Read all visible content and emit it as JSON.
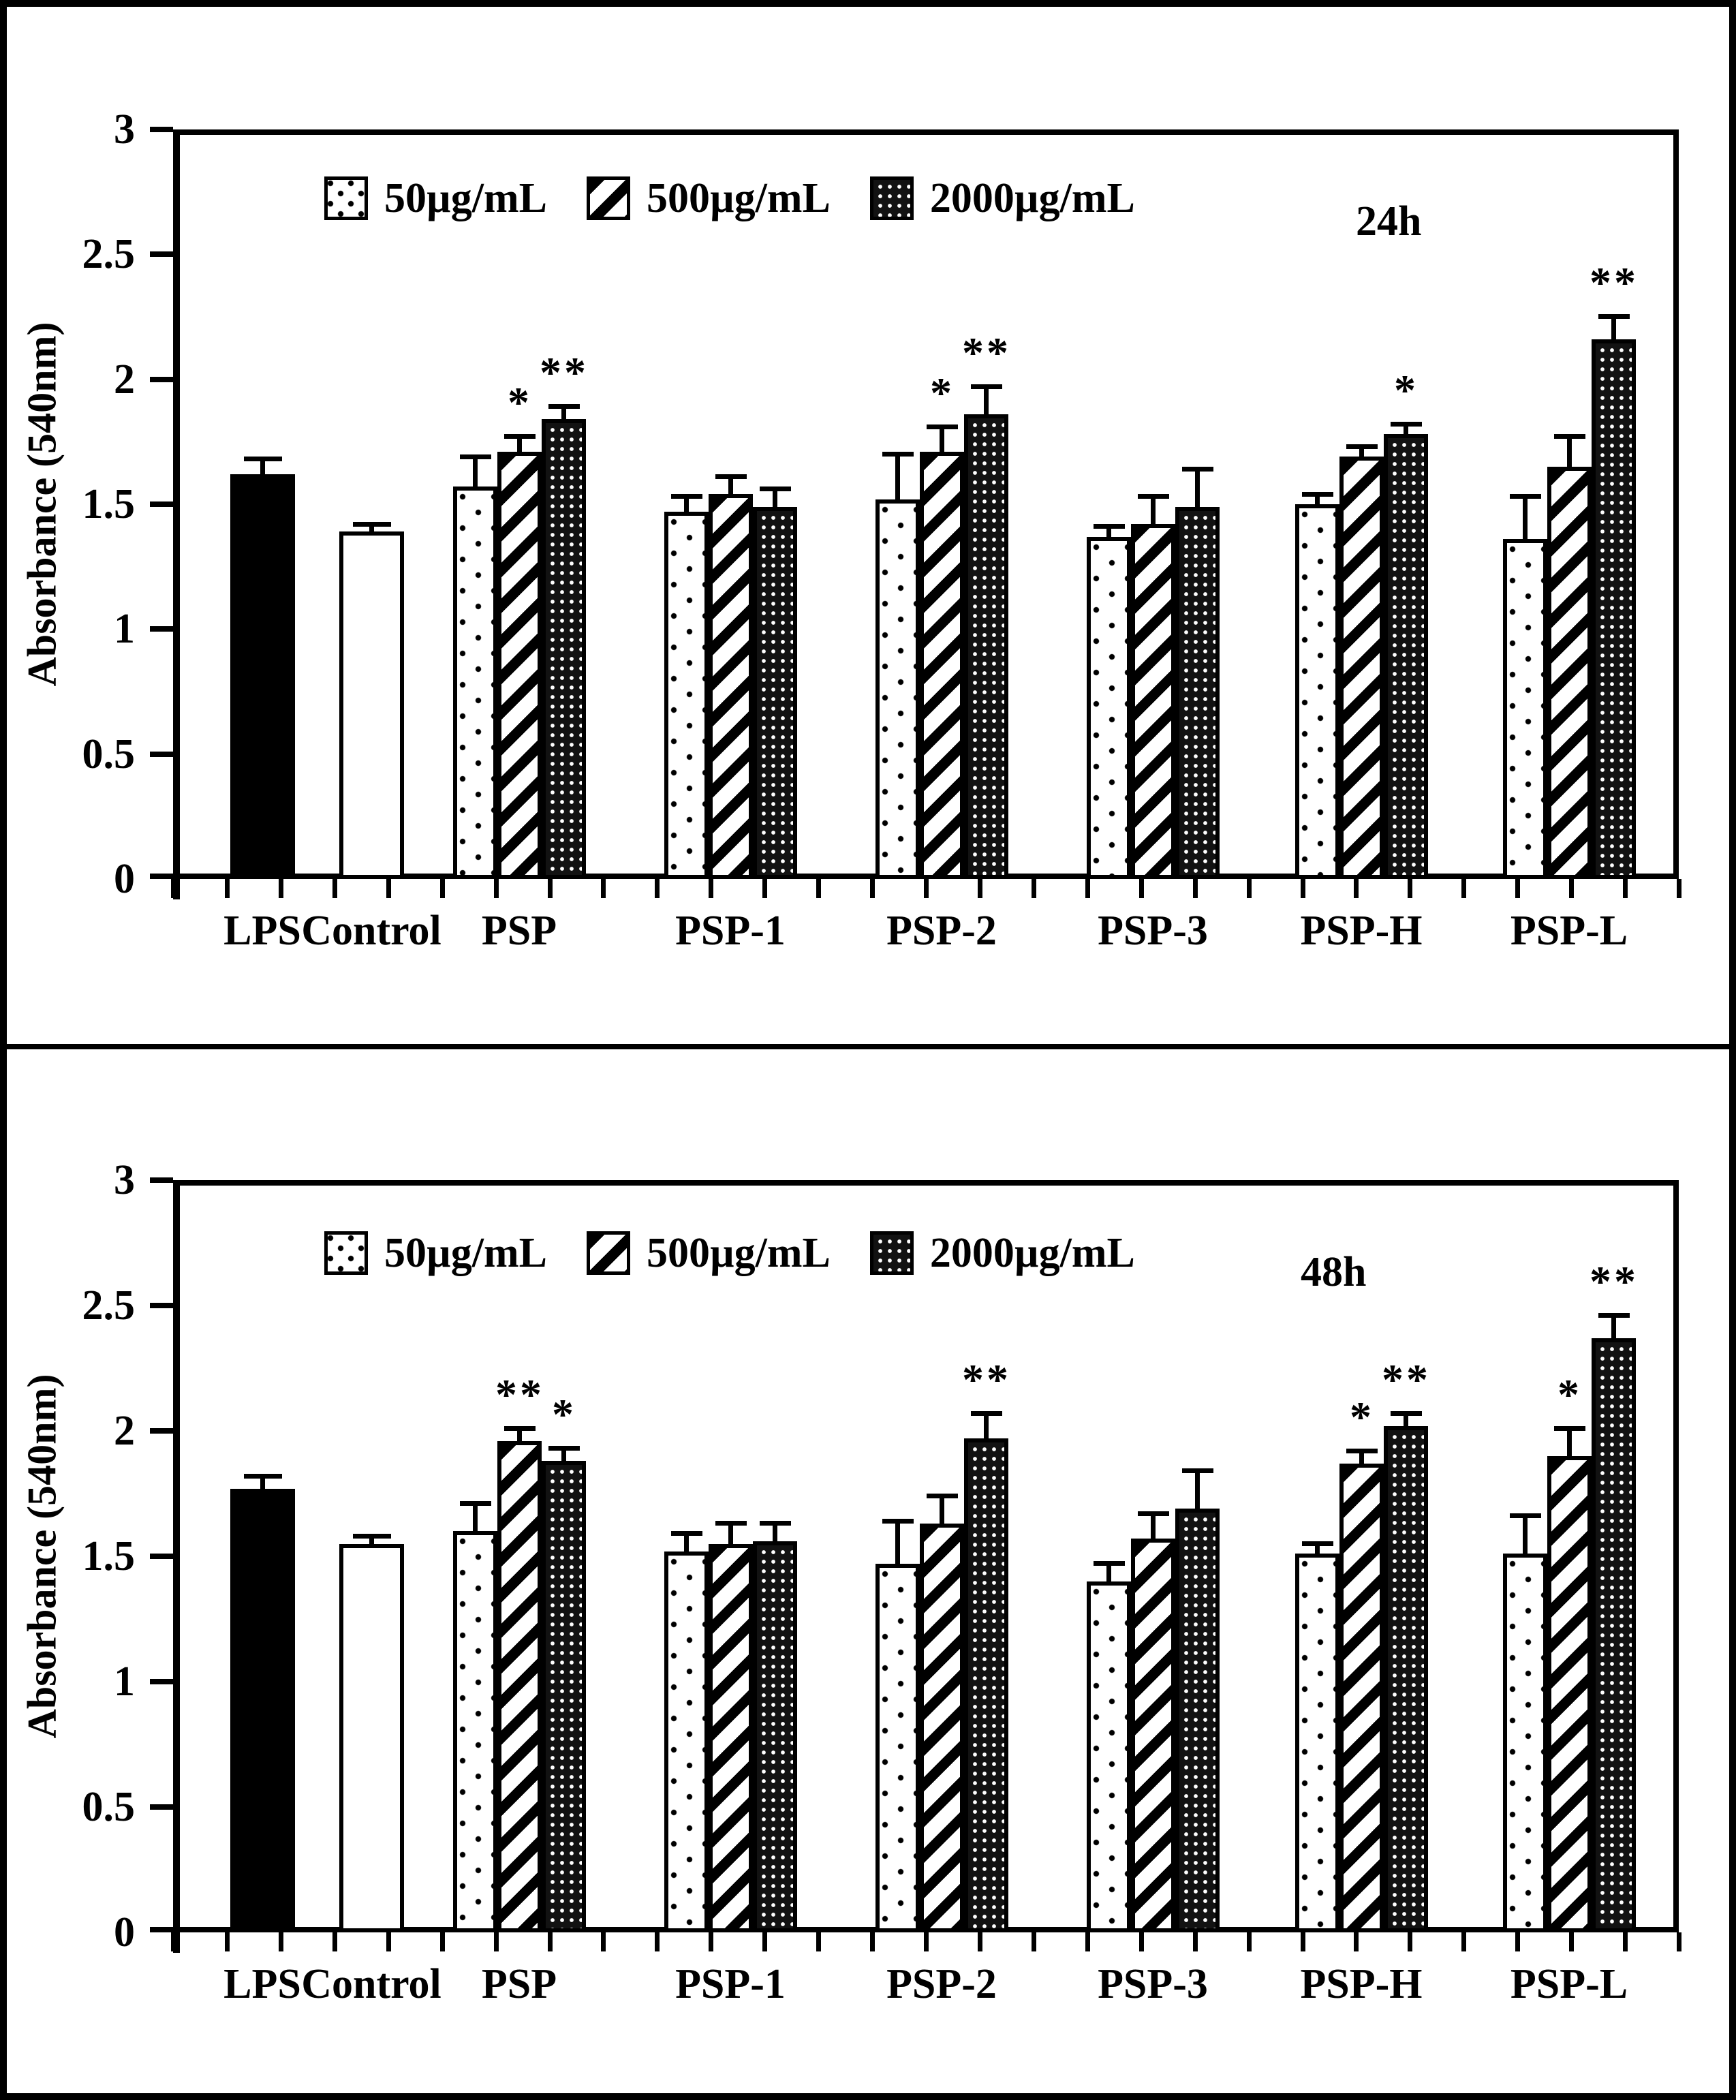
{
  "figure": {
    "description": "Two stacked bar chart panels, MTT absorbance after 24h and 48h treatment",
    "background": "#ffffff",
    "border_color": "#000000"
  },
  "chart_data": [
    {
      "type": "bar",
      "annotation": "24h",
      "ylabel": "Absorbance (540nm)",
      "xlabel": "",
      "ylim": [
        0,
        3
      ],
      "yticks": [
        0,
        0.5,
        1,
        1.5,
        2,
        2.5,
        3
      ],
      "ytick_labels": [
        "0",
        "0.5",
        "1",
        "1.5",
        "2",
        "2.5",
        "3"
      ],
      "grid": false,
      "legend_position": "top-left-inside",
      "legend": [
        {
          "label": "50µg/mL",
          "pattern": "dots"
        },
        {
          "label": "500µg/mL",
          "pattern": "stripes"
        },
        {
          "label": "2000µg/mL",
          "pattern": "dense"
        }
      ],
      "categories": [
        "LPS",
        "Control",
        "PSP",
        "PSP-1",
        "PSP-2",
        "PSP-3",
        "PSP-H",
        "PSP-L"
      ],
      "groups": [
        {
          "category": "LPS",
          "bars": [
            {
              "series": "LPS",
              "pattern": "solid",
              "value": 1.62,
              "err": 0.07,
              "sig": ""
            }
          ]
        },
        {
          "category": "Control",
          "bars": [
            {
              "series": "Control",
              "pattern": "plain",
              "value": 1.39,
              "err": 0.04,
              "sig": ""
            }
          ]
        },
        {
          "category": "PSP",
          "bars": [
            {
              "series": "50µg/mL",
              "pattern": "dots",
              "value": 1.57,
              "err": 0.13,
              "sig": ""
            },
            {
              "series": "500µg/mL",
              "pattern": "stripes",
              "value": 1.71,
              "err": 0.07,
              "sig": "*"
            },
            {
              "series": "2000µg/mL",
              "pattern": "dense",
              "value": 1.84,
              "err": 0.06,
              "sig": "**"
            }
          ]
        },
        {
          "category": "PSP-1",
          "bars": [
            {
              "series": "50µg/mL",
              "pattern": "dots",
              "value": 1.47,
              "err": 0.07,
              "sig": ""
            },
            {
              "series": "500µg/mL",
              "pattern": "stripes",
              "value": 1.54,
              "err": 0.08,
              "sig": ""
            },
            {
              "series": "2000µg/mL",
              "pattern": "dense",
              "value": 1.49,
              "err": 0.08,
              "sig": ""
            }
          ]
        },
        {
          "category": "PSP-2",
          "bars": [
            {
              "series": "50µg/mL",
              "pattern": "dots",
              "value": 1.52,
              "err": 0.19,
              "sig": ""
            },
            {
              "series": "500µg/mL",
              "pattern": "stripes",
              "value": 1.71,
              "err": 0.11,
              "sig": "*"
            },
            {
              "series": "2000µg/mL",
              "pattern": "dense",
              "value": 1.86,
              "err": 0.12,
              "sig": "**"
            }
          ]
        },
        {
          "category": "PSP-3",
          "bars": [
            {
              "series": "50µg/mL",
              "pattern": "dots",
              "value": 1.37,
              "err": 0.05,
              "sig": ""
            },
            {
              "series": "500µg/mL",
              "pattern": "stripes",
              "value": 1.42,
              "err": 0.12,
              "sig": ""
            },
            {
              "series": "2000µg/mL",
              "pattern": "dense",
              "value": 1.49,
              "err": 0.16,
              "sig": ""
            }
          ]
        },
        {
          "category": "PSP-H",
          "bars": [
            {
              "series": "50µg/mL",
              "pattern": "dots",
              "value": 1.5,
              "err": 0.05,
              "sig": ""
            },
            {
              "series": "500µg/mL",
              "pattern": "stripes",
              "value": 1.69,
              "err": 0.05,
              "sig": ""
            },
            {
              "series": "2000µg/mL",
              "pattern": "dense",
              "value": 1.78,
              "err": 0.05,
              "sig": "*"
            }
          ]
        },
        {
          "category": "PSP-L",
          "bars": [
            {
              "series": "50µg/mL",
              "pattern": "dots",
              "value": 1.36,
              "err": 0.18,
              "sig": ""
            },
            {
              "series": "500µg/mL",
              "pattern": "stripes",
              "value": 1.65,
              "err": 0.13,
              "sig": ""
            },
            {
              "series": "2000µg/mL",
              "pattern": "dense",
              "value": 2.16,
              "err": 0.1,
              "sig": "**"
            }
          ]
        }
      ]
    },
    {
      "type": "bar",
      "annotation": "48h",
      "ylabel": "Absorbance (540nm)",
      "xlabel": "",
      "ylim": [
        0,
        3
      ],
      "yticks": [
        0,
        0.5,
        1,
        1.5,
        2,
        2.5,
        3
      ],
      "ytick_labels": [
        "0",
        "0.5",
        "1",
        "1.5",
        "2",
        "2.5",
        "3"
      ],
      "grid": false,
      "legend_position": "top-left-inside",
      "legend": [
        {
          "label": "50µg/mL",
          "pattern": "dots"
        },
        {
          "label": "500µg/mL",
          "pattern": "stripes"
        },
        {
          "label": "2000µg/mL",
          "pattern": "dense"
        }
      ],
      "categories": [
        "LPS",
        "Control",
        "PSP",
        "PSP-1",
        "PSP-2",
        "PSP-3",
        "PSP-H",
        "PSP-L"
      ],
      "groups": [
        {
          "category": "LPS",
          "bars": [
            {
              "series": "LPS",
              "pattern": "solid",
              "value": 1.77,
              "err": 0.06,
              "sig": ""
            }
          ]
        },
        {
          "category": "Control",
          "bars": [
            {
              "series": "Control",
              "pattern": "plain",
              "value": 1.55,
              "err": 0.04,
              "sig": ""
            }
          ]
        },
        {
          "category": "PSP",
          "bars": [
            {
              "series": "50µg/mL",
              "pattern": "dots",
              "value": 1.6,
              "err": 0.12,
              "sig": ""
            },
            {
              "series": "500µg/mL",
              "pattern": "stripes",
              "value": 1.96,
              "err": 0.06,
              "sig": "**"
            },
            {
              "series": "2000µg/mL",
              "pattern": "dense",
              "value": 1.88,
              "err": 0.06,
              "sig": "*"
            }
          ]
        },
        {
          "category": "PSP-1",
          "bars": [
            {
              "series": "50µg/mL",
              "pattern": "dots",
              "value": 1.52,
              "err": 0.08,
              "sig": ""
            },
            {
              "series": "500µg/mL",
              "pattern": "stripes",
              "value": 1.55,
              "err": 0.09,
              "sig": ""
            },
            {
              "series": "2000µg/mL",
              "pattern": "dense",
              "value": 1.56,
              "err": 0.08,
              "sig": ""
            }
          ]
        },
        {
          "category": "PSP-2",
          "bars": [
            {
              "series": "50µg/mL",
              "pattern": "dots",
              "value": 1.47,
              "err": 0.18,
              "sig": ""
            },
            {
              "series": "500µg/mL",
              "pattern": "stripes",
              "value": 1.63,
              "err": 0.12,
              "sig": ""
            },
            {
              "series": "2000µg/mL",
              "pattern": "dense",
              "value": 1.97,
              "err": 0.11,
              "sig": "**"
            }
          ]
        },
        {
          "category": "PSP-3",
          "bars": [
            {
              "series": "50µg/mL",
              "pattern": "dots",
              "value": 1.4,
              "err": 0.08,
              "sig": ""
            },
            {
              "series": "500µg/mL",
              "pattern": "stripes",
              "value": 1.57,
              "err": 0.11,
              "sig": ""
            },
            {
              "series": "2000µg/mL",
              "pattern": "dense",
              "value": 1.69,
              "err": 0.16,
              "sig": ""
            }
          ]
        },
        {
          "category": "PSP-H",
          "bars": [
            {
              "series": "50µg/mL",
              "pattern": "dots",
              "value": 1.51,
              "err": 0.05,
              "sig": ""
            },
            {
              "series": "500µg/mL",
              "pattern": "stripes",
              "value": 1.87,
              "err": 0.06,
              "sig": "*"
            },
            {
              "series": "2000µg/mL",
              "pattern": "dense",
              "value": 2.02,
              "err": 0.06,
              "sig": "**"
            }
          ]
        },
        {
          "category": "PSP-L",
          "bars": [
            {
              "series": "50µg/mL",
              "pattern": "dots",
              "value": 1.51,
              "err": 0.16,
              "sig": ""
            },
            {
              "series": "500µg/mL",
              "pattern": "stripes",
              "value": 1.9,
              "err": 0.12,
              "sig": "*"
            },
            {
              "series": "2000µg/mL",
              "pattern": "dense",
              "value": 2.37,
              "err": 0.1,
              "sig": "**"
            }
          ]
        }
      ]
    }
  ]
}
